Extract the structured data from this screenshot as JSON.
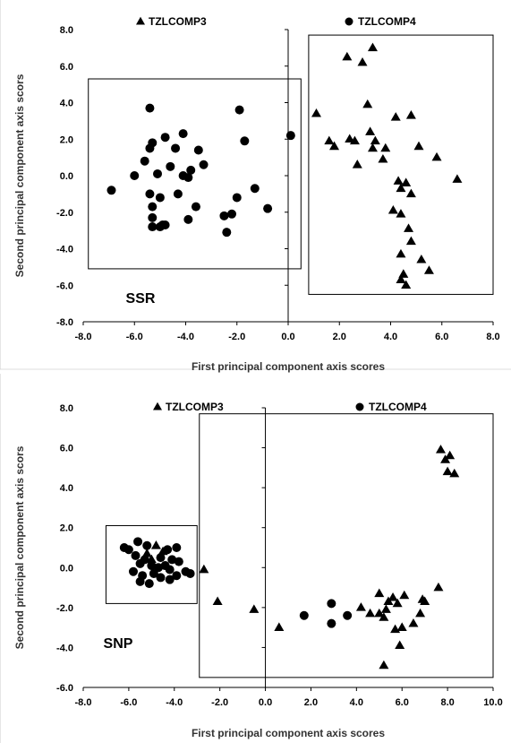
{
  "chart_data": [
    {
      "type": "scatter",
      "panel_label": "SSR",
      "xlabel": "First principal component axis scores",
      "ylabel": "Second principal component axis scors",
      "xlim": [
        -8,
        8
      ],
      "ylim": [
        -8,
        8
      ],
      "x_ticks": [
        "-8.0",
        "-6.0",
        "-4.0",
        "-2.0",
        "0.0",
        "2.0",
        "4.0",
        "6.0",
        "8.0"
      ],
      "y_ticks": [
        "8.0",
        "6.0",
        "4.0",
        "2.0",
        "0.0",
        "-2.0",
        "-4.0",
        "-6.0",
        "-8.0"
      ],
      "grid": false,
      "legend_position": "top",
      "series": [
        {
          "name": "TZLCOMP3",
          "marker": "triangle",
          "color": "#000000",
          "points": [
            [
              3.3,
              7.0
            ],
            [
              2.3,
              6.5
            ],
            [
              2.9,
              6.2
            ],
            [
              1.1,
              3.4
            ],
            [
              3.1,
              3.9
            ],
            [
              4.2,
              3.2
            ],
            [
              4.8,
              3.3
            ],
            [
              3.2,
              2.4
            ],
            [
              5.1,
              1.6
            ],
            [
              1.6,
              1.9
            ],
            [
              1.8,
              1.6
            ],
            [
              2.4,
              2.0
            ],
            [
              2.6,
              1.9
            ],
            [
              3.4,
              1.9
            ],
            [
              3.3,
              1.5
            ],
            [
              3.8,
              1.5
            ],
            [
              5.8,
              1.0
            ],
            [
              3.7,
              0.9
            ],
            [
              2.7,
              0.6
            ],
            [
              6.6,
              -0.2
            ],
            [
              4.3,
              -0.3
            ],
            [
              4.6,
              -0.4
            ],
            [
              4.4,
              -0.7
            ],
            [
              4.8,
              -1.0
            ],
            [
              4.1,
              -1.9
            ],
            [
              4.4,
              -2.1
            ],
            [
              4.7,
              -2.9
            ],
            [
              4.8,
              -3.6
            ],
            [
              5.2,
              -4.6
            ],
            [
              4.4,
              -4.3
            ],
            [
              5.5,
              -5.2
            ],
            [
              4.5,
              -5.4
            ],
            [
              4.4,
              -5.7
            ],
            [
              4.6,
              -6.0
            ]
          ]
        },
        {
          "name": "TZLCOMP4",
          "marker": "circle",
          "color": "#000000",
          "points": [
            [
              -5.4,
              3.7
            ],
            [
              -1.9,
              3.6
            ],
            [
              -4.1,
              2.3
            ],
            [
              -4.8,
              2.1
            ],
            [
              0.1,
              2.2
            ],
            [
              -5.3,
              1.8
            ],
            [
              -5.4,
              1.5
            ],
            [
              -4.4,
              1.5
            ],
            [
              -1.7,
              1.9
            ],
            [
              -3.5,
              1.4
            ],
            [
              -3.3,
              0.6
            ],
            [
              -5.6,
              0.8
            ],
            [
              -4.6,
              0.5
            ],
            [
              -3.8,
              0.3
            ],
            [
              -4.1,
              0.0
            ],
            [
              -5.1,
              0.1
            ],
            [
              -3.9,
              -0.1
            ],
            [
              -6.0,
              0.0
            ],
            [
              -6.9,
              -0.8
            ],
            [
              -5.4,
              -1.0
            ],
            [
              -5.0,
              -1.2
            ],
            [
              -4.3,
              -1.0
            ],
            [
              -1.3,
              -0.7
            ],
            [
              -5.3,
              -1.7
            ],
            [
              -3.6,
              -1.7
            ],
            [
              -2.0,
              -1.2
            ],
            [
              -0.8,
              -1.8
            ],
            [
              -5.3,
              -2.3
            ],
            [
              -4.8,
              -2.7
            ],
            [
              -2.2,
              -2.1
            ],
            [
              -2.5,
              -2.2
            ],
            [
              -3.9,
              -2.4
            ],
            [
              -5.3,
              -2.8
            ],
            [
              -5.0,
              -2.8
            ],
            [
              -4.9,
              -2.7
            ],
            [
              -2.4,
              -3.1
            ]
          ]
        }
      ],
      "boxes": [
        {
          "group": "TZLCOMP4",
          "x0": -7.8,
          "x1": 0.5,
          "y0": -5.1,
          "y1": 5.3
        },
        {
          "group": "TZLCOMP3",
          "x0": 0.8,
          "x1": 8.0,
          "y0": -6.5,
          "y1": 7.7
        }
      ]
    },
    {
      "type": "scatter",
      "panel_label": "SNP",
      "xlabel": "First principal component axis scores",
      "ylabel": "Second principal component axis scors",
      "xlim": [
        -8,
        10
      ],
      "ylim": [
        -6,
        8
      ],
      "x_ticks": [
        "-8.0",
        "-6.0",
        "-4.0",
        "-2.0",
        "0.0",
        "2.0",
        "4.0",
        "6.0",
        "8.0",
        "10.0"
      ],
      "y_ticks": [
        "8.0",
        "6.0",
        "4.0",
        "2.0",
        "0.0",
        "-2.0",
        "-4.0",
        "-6.0"
      ],
      "grid": false,
      "legend_position": "top",
      "series": [
        {
          "name": "TZLCOMP3",
          "marker": "triangle",
          "color": "#000000",
          "points": [
            [
              -4.8,
              1.1
            ],
            [
              -5.2,
              0.7
            ],
            [
              -4.5,
              0.8
            ],
            [
              -5.0,
              0.4
            ],
            [
              7.7,
              5.9
            ],
            [
              7.9,
              5.4
            ],
            [
              8.1,
              5.6
            ],
            [
              8.0,
              4.8
            ],
            [
              8.3,
              4.7
            ],
            [
              -2.7,
              -0.1
            ],
            [
              -2.1,
              -1.7
            ],
            [
              -0.5,
              -2.1
            ],
            [
              0.6,
              -3.0
            ],
            [
              4.2,
              -2.0
            ],
            [
              5.0,
              -1.3
            ],
            [
              5.0,
              -2.3
            ],
            [
              5.2,
              -2.5
            ],
            [
              5.3,
              -2.1
            ],
            [
              5.4,
              -1.7
            ],
            [
              5.6,
              -1.5
            ],
            [
              6.1,
              -1.4
            ],
            [
              5.8,
              -1.8
            ],
            [
              6.9,
              -1.6
            ],
            [
              7.0,
              -1.7
            ],
            [
              7.6,
              -1.0
            ],
            [
              5.2,
              -4.9
            ],
            [
              5.7,
              -3.1
            ],
            [
              6.0,
              -3.0
            ],
            [
              5.9,
              -3.9
            ],
            [
              6.5,
              -2.8
            ],
            [
              6.8,
              -2.3
            ],
            [
              4.6,
              -2.3
            ]
          ]
        },
        {
          "name": "TZLCOMP4",
          "marker": "circle",
          "color": "#000000",
          "points": [
            [
              -6.2,
              1.0
            ],
            [
              -6.0,
              0.9
            ],
            [
              -5.6,
              1.3
            ],
            [
              -5.2,
              1.1
            ],
            [
              -4.3,
              0.9
            ],
            [
              -3.9,
              1.0
            ],
            [
              -5.7,
              0.6
            ],
            [
              -5.3,
              0.4
            ],
            [
              -4.6,
              0.5
            ],
            [
              -4.1,
              0.4
            ],
            [
              -3.8,
              0.3
            ],
            [
              -5.5,
              0.2
            ],
            [
              -5.0,
              0.1
            ],
            [
              -4.7,
              0.0
            ],
            [
              -4.4,
              0.1
            ],
            [
              -4.2,
              -0.1
            ],
            [
              -5.8,
              -0.2
            ],
            [
              -5.4,
              -0.4
            ],
            [
              -4.9,
              -0.3
            ],
            [
              -4.6,
              -0.5
            ],
            [
              -4.2,
              -0.6
            ],
            [
              -3.9,
              -0.4
            ],
            [
              -5.5,
              -0.7
            ],
            [
              -5.1,
              -0.8
            ],
            [
              -3.5,
              -0.2
            ],
            [
              -3.3,
              -0.3
            ],
            [
              1.7,
              -2.4
            ],
            [
              2.9,
              -1.8
            ],
            [
              2.9,
              -2.8
            ],
            [
              3.6,
              -2.4
            ]
          ]
        }
      ],
      "boxes": [
        {
          "group": "TZLCOMP4",
          "x0": -7.0,
          "x1": -3.0,
          "y0": -1.8,
          "y1": 2.1
        },
        {
          "group": "TZLCOMP3",
          "x0": -2.9,
          "x1": 10.0,
          "y0": -5.5,
          "y1": 7.7
        }
      ]
    }
  ]
}
